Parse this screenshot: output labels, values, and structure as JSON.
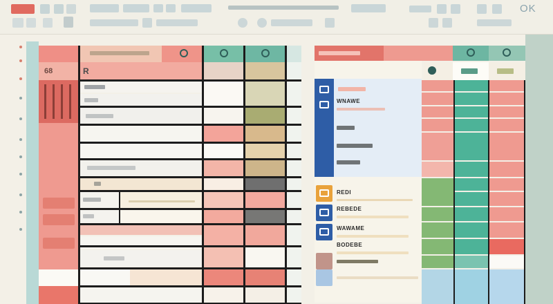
{
  "toolbar": {
    "window_label": "OK",
    "accent": "#e06a5f"
  },
  "left_sheet": {
    "header_label": "68",
    "name_column_label": "R",
    "header_badges": [
      "column-status-icon",
      "column-status-icon",
      "column-status-icon"
    ],
    "row_tag_labels": [
      "",
      "",
      "",
      ""
    ]
  },
  "right_sheet": {
    "header_badges": [
      "column-status-icon",
      "column-status-icon"
    ],
    "list_items": [
      {
        "icon": "card-icon",
        "title": "",
        "color": "#2e5da6"
      },
      {
        "icon": "card-icon",
        "title": "WNAWE",
        "color": "#2e5da6"
      },
      {
        "icon": "card-icon",
        "title": "",
        "color": "#2e5da6"
      },
      {
        "icon": "card-icon",
        "title": "",
        "color": "#2e5da6"
      },
      {
        "icon": "folder-icon",
        "title": "REDI",
        "color": "#e9a23b"
      },
      {
        "icon": "card-icon",
        "title": "REBEDE",
        "color": "#2e5da6"
      },
      {
        "icon": "card-icon",
        "title": "WAWAME",
        "color": "#2e5da6"
      },
      {
        "icon": "card-icon",
        "title": "BODEBE",
        "color": "#2e5da6"
      }
    ]
  },
  "colors": {
    "salmon": "#ef9c92",
    "teal": "#4db398",
    "olive": "#b8ae7d",
    "blue": "#2e5da6",
    "green": "#84b874",
    "gridline": "#1c1c1c"
  }
}
